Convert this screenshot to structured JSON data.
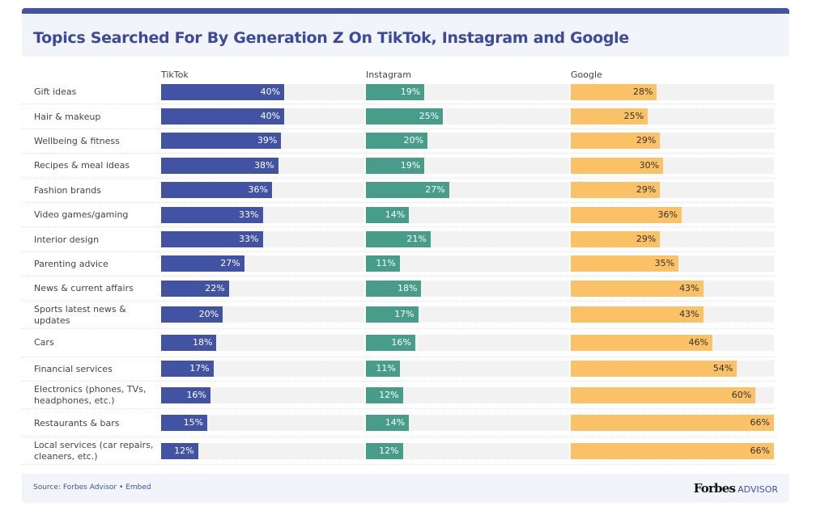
{
  "chart_data": {
    "type": "bar",
    "title": "Topics Searched For By Generation Z On TikTok, Instagram and Google",
    "categories": [
      "Gift ideas",
      "Hair & makeup",
      "Wellbeing & fitness",
      "Recipes & meal ideas",
      "Fashion brands",
      "Video games/gaming",
      "Interior design",
      "Parenting advice",
      "News & current affairs",
      "Sports latest news & updates",
      "Cars",
      "Financial services",
      "Electronics (phones, TVs, headphones, etc.)",
      "Restaurants & bars",
      "Local services (car repairs, cleaners, etc.)"
    ],
    "series": [
      {
        "name": "TikTok",
        "color": "#4353a3",
        "text_color": "#ffffff",
        "values": [
          40,
          40,
          39,
          38,
          36,
          33,
          33,
          27,
          22,
          20,
          18,
          17,
          16,
          15,
          12
        ]
      },
      {
        "name": "Instagram",
        "color": "#479c8a",
        "text_color": "#ffffff",
        "values": [
          19,
          25,
          20,
          19,
          27,
          14,
          21,
          11,
          18,
          17,
          16,
          11,
          12,
          14,
          12
        ]
      },
      {
        "name": "Google",
        "color": "#fac167",
        "text_color": "#333333",
        "values": [
          28,
          25,
          29,
          30,
          29,
          36,
          29,
          35,
          43,
          43,
          46,
          54,
          60,
          66,
          66
        ]
      }
    ],
    "value_suffix": "%",
    "xlim": [
      0,
      66
    ]
  },
  "footer": {
    "source_label": "Source:",
    "source_name": "Forbes Advisor",
    "separator": "•",
    "embed": "Embed",
    "logo_forbes": "Forbes",
    "logo_advisor": "ADVISOR"
  }
}
